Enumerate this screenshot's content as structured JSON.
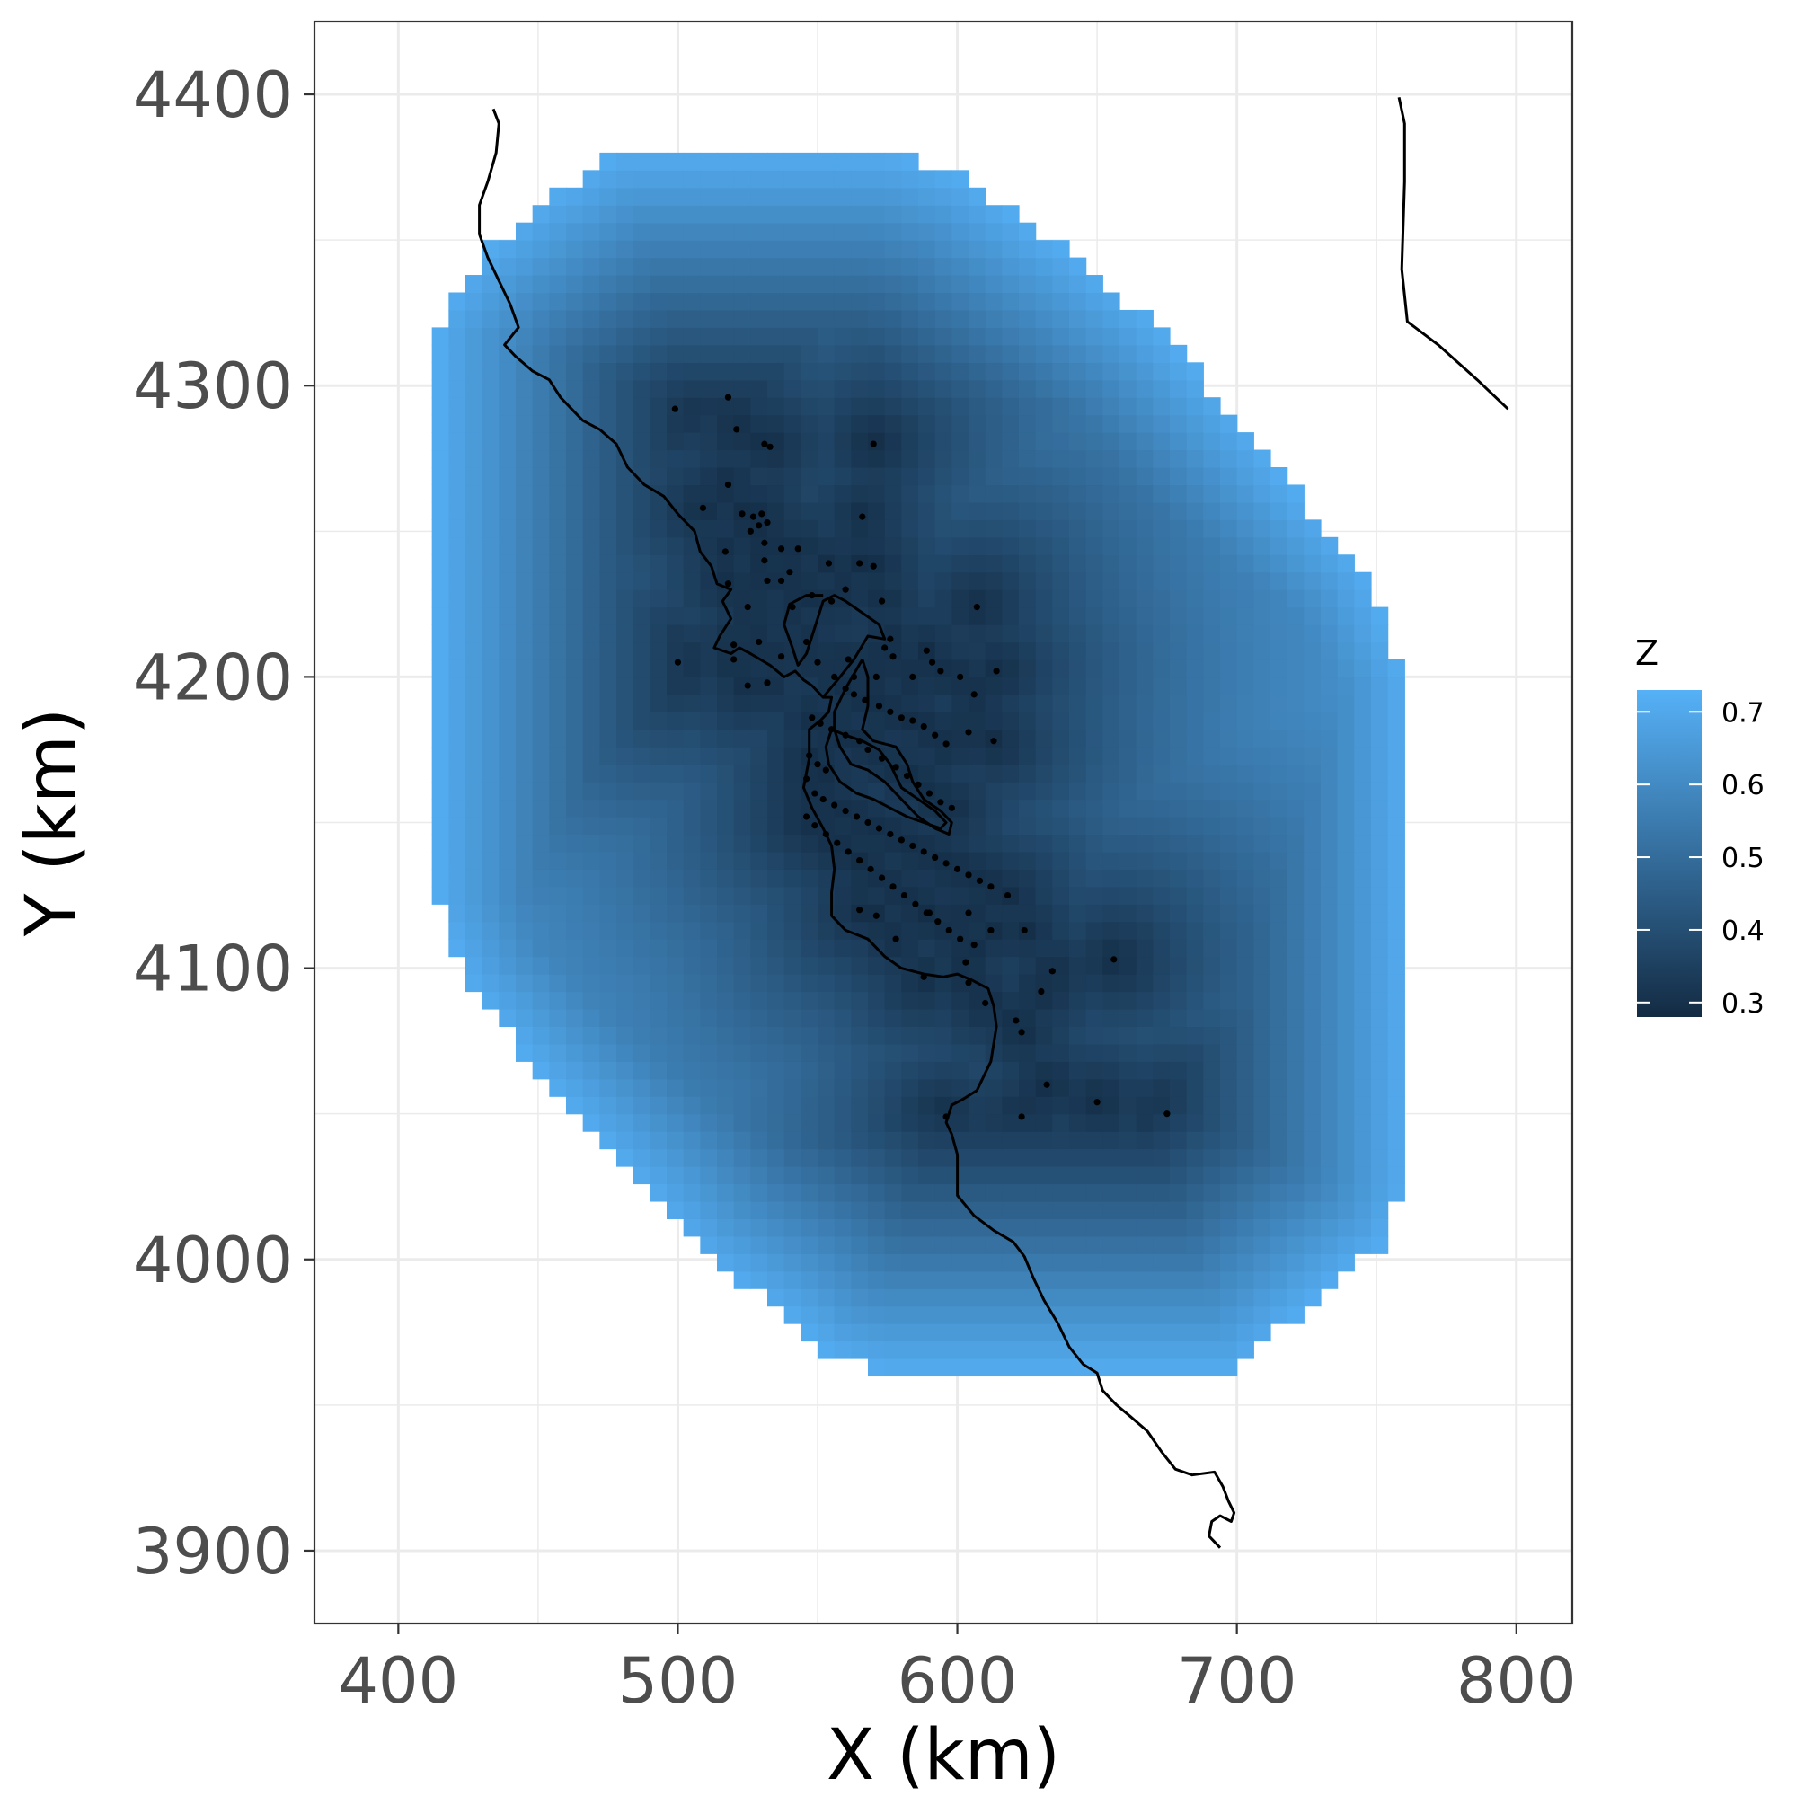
{
  "chart_data": {
    "type": "heatmap",
    "title": "",
    "xlabel": "X (km)",
    "ylabel": "Y (km)",
    "xlim": [
      370,
      820
    ],
    "ylim": [
      3875,
      4425
    ],
    "x_ticks": [
      400,
      500,
      600,
      700,
      800
    ],
    "y_ticks": [
      3900,
      4000,
      4100,
      4200,
      4300,
      4400
    ],
    "grid": true,
    "legend": {
      "title": "Z",
      "position": "right",
      "range": [
        0.28,
        0.73
      ],
      "ticks": [
        0.3,
        0.4,
        0.5,
        0.6,
        0.7
      ],
      "color_low": "#132B43",
      "color_high": "#56B1F7"
    },
    "surface": {
      "description_values": "predicted Z over convex hull region",
      "hull_polygon": [
        [
          415,
          4322
        ],
        [
          430,
          4345
        ],
        [
          455,
          4365
        ],
        [
          480,
          4380
        ],
        [
          575,
          4380
        ],
        [
          600,
          4372
        ],
        [
          640,
          4345
        ],
        [
          670,
          4322
        ],
        [
          690,
          4300
        ],
        [
          715,
          4270
        ],
        [
          745,
          4236
        ],
        [
          760,
          4200
        ],
        [
          760,
          4025
        ],
        [
          752,
          4005
        ],
        [
          735,
          3993
        ],
        [
          720,
          3980
        ],
        [
          705,
          3967
        ],
        [
          700,
          3962
        ],
        [
          572,
          3962
        ],
        [
          555,
          3967
        ],
        [
          540,
          3980
        ],
        [
          510,
          4000
        ],
        [
          490,
          4023
        ],
        [
          450,
          4065
        ],
        [
          425,
          4095
        ],
        [
          415,
          4120
        ]
      ],
      "min_center": [
        585,
        4180
      ],
      "min_value": 0.29,
      "max_value": 0.73
    },
    "points": [
      [
        499,
        4292
      ],
      [
        518,
        4296
      ],
      [
        521,
        4285
      ],
      [
        531,
        4280
      ],
      [
        533,
        4279
      ],
      [
        570,
        4280
      ],
      [
        518,
        4266
      ],
      [
        509,
        4258
      ],
      [
        523,
        4256
      ],
      [
        527,
        4255
      ],
      [
        530,
        4256
      ],
      [
        529,
        4252
      ],
      [
        532,
        4253
      ],
      [
        526,
        4250
      ],
      [
        531,
        4246
      ],
      [
        537,
        4244
      ],
      [
        543,
        4244
      ],
      [
        517,
        4243
      ],
      [
        531,
        4240
      ],
      [
        540,
        4236
      ],
      [
        537,
        4233
      ],
      [
        532,
        4233
      ],
      [
        518,
        4232
      ],
      [
        554,
        4239
      ],
      [
        565,
        4239
      ],
      [
        570,
        4238
      ],
      [
        566,
        4255
      ],
      [
        525,
        4224
      ],
      [
        548,
        4228
      ],
      [
        555,
        4226
      ],
      [
        573,
        4226
      ],
      [
        607,
        4224
      ],
      [
        541,
        4224
      ],
      [
        560,
        4230
      ],
      [
        576,
        4213
      ],
      [
        574,
        4210
      ],
      [
        520,
        4211
      ],
      [
        529,
        4212
      ],
      [
        546,
        4212
      ],
      [
        537,
        4207
      ],
      [
        520,
        4206
      ],
      [
        500,
        4205
      ],
      [
        550,
        4205
      ],
      [
        561,
        4206
      ],
      [
        577,
        4207
      ],
      [
        589,
        4209
      ],
      [
        591,
        4205
      ],
      [
        594,
        4202
      ],
      [
        556,
        4200
      ],
      [
        563,
        4200
      ],
      [
        571,
        4200
      ],
      [
        584,
        4200
      ],
      [
        601,
        4200
      ],
      [
        614,
        4202
      ],
      [
        525,
        4197
      ],
      [
        532,
        4198
      ],
      [
        560,
        4196
      ],
      [
        563,
        4194
      ],
      [
        567,
        4192
      ],
      [
        572,
        4190
      ],
      [
        576,
        4188
      ],
      [
        580,
        4186
      ],
      [
        584,
        4185
      ],
      [
        588,
        4183
      ],
      [
        592,
        4180
      ],
      [
        596,
        4177
      ],
      [
        604,
        4181
      ],
      [
        613,
        4178
      ],
      [
        606,
        4194
      ],
      [
        548,
        4186
      ],
      [
        551,
        4184
      ],
      [
        555,
        4182
      ],
      [
        560,
        4180
      ],
      [
        565,
        4178
      ],
      [
        568,
        4175
      ],
      [
        573,
        4172
      ],
      [
        578,
        4169
      ],
      [
        582,
        4166
      ],
      [
        586,
        4163
      ],
      [
        590,
        4160
      ],
      [
        594,
        4157
      ],
      [
        598,
        4155
      ],
      [
        547,
        4173
      ],
      [
        550,
        4170
      ],
      [
        553,
        4168
      ],
      [
        546,
        4165
      ],
      [
        549,
        4160
      ],
      [
        552,
        4158
      ],
      [
        556,
        4156
      ],
      [
        560,
        4154
      ],
      [
        564,
        4152
      ],
      [
        568,
        4150
      ],
      [
        572,
        4148
      ],
      [
        576,
        4146
      ],
      [
        580,
        4144
      ],
      [
        584,
        4142
      ],
      [
        588,
        4140
      ],
      [
        592,
        4138
      ],
      [
        596,
        4136
      ],
      [
        600,
        4134
      ],
      [
        604,
        4132
      ],
      [
        608,
        4130
      ],
      [
        612,
        4128
      ],
      [
        546,
        4152
      ],
      [
        549,
        4149
      ],
      [
        553,
        4146
      ],
      [
        557,
        4143
      ],
      [
        561,
        4140
      ],
      [
        565,
        4137
      ],
      [
        569,
        4134
      ],
      [
        573,
        4131
      ],
      [
        577,
        4128
      ],
      [
        581,
        4125
      ],
      [
        585,
        4122
      ],
      [
        589,
        4119
      ],
      [
        593,
        4116
      ],
      [
        597,
        4113
      ],
      [
        601,
        4110
      ],
      [
        565,
        4120
      ],
      [
        571,
        4118
      ],
      [
        578,
        4110
      ],
      [
        590,
        4119
      ],
      [
        604,
        4119
      ],
      [
        606,
        4108
      ],
      [
        612,
        4113
      ],
      [
        618,
        4125
      ],
      [
        624,
        4113
      ],
      [
        604,
        4095
      ],
      [
        610,
        4088
      ],
      [
        621,
        4082
      ],
      [
        623,
        4078
      ],
      [
        630,
        4092
      ],
      [
        634,
        4099
      ],
      [
        656,
        4103
      ],
      [
        603,
        4102
      ],
      [
        588,
        4097
      ],
      [
        632,
        4060
      ],
      [
        650,
        4054
      ],
      [
        675,
        4050
      ],
      [
        623,
        4049
      ],
      [
        596,
        4049
      ]
    ],
    "coastline": [
      [
        434,
        4395
      ],
      [
        436,
        4390
      ],
      [
        435,
        4380
      ],
      [
        432,
        4370
      ],
      [
        429,
        4362
      ],
      [
        429,
        4352
      ],
      [
        432,
        4344
      ],
      [
        436,
        4336
      ],
      [
        440,
        4328
      ],
      [
        443,
        4320
      ],
      [
        438,
        4314
      ],
      [
        442,
        4310
      ],
      [
        448,
        4305
      ],
      [
        454,
        4302
      ],
      [
        458,
        4296
      ],
      [
        462,
        4292
      ],
      [
        466,
        4288
      ],
      [
        472,
        4285
      ],
      [
        478,
        4280
      ],
      [
        482,
        4272
      ],
      [
        488,
        4266
      ],
      [
        495,
        4262
      ],
      [
        500,
        4256
      ],
      [
        506,
        4250
      ],
      [
        508,
        4243
      ],
      [
        512,
        4238
      ],
      [
        514,
        4232
      ],
      [
        519,
        4230
      ],
      [
        516,
        4226
      ],
      [
        519,
        4220
      ],
      [
        515,
        4214
      ],
      [
        513,
        4210
      ],
      [
        519,
        4208
      ],
      [
        522,
        4210
      ],
      [
        526,
        4208
      ],
      [
        533,
        4204
      ],
      [
        538,
        4200
      ],
      [
        542,
        4202
      ],
      [
        545,
        4199
      ],
      [
        548,
        4197
      ],
      [
        552,
        4193
      ],
      [
        555,
        4193
      ],
      [
        554,
        4188
      ],
      [
        551,
        4185
      ],
      [
        547,
        4182
      ],
      [
        547,
        4172
      ],
      [
        545,
        4162
      ],
      [
        548,
        4155
      ],
      [
        552,
        4148
      ],
      [
        555,
        4142
      ],
      [
        556,
        4134
      ],
      [
        555,
        4126
      ],
      [
        555,
        4118
      ],
      [
        560,
        4113
      ],
      [
        568,
        4110
      ],
      [
        574,
        4104
      ],
      [
        580,
        4100
      ],
      [
        588,
        4098
      ],
      [
        595,
        4097
      ],
      [
        600,
        4098
      ],
      [
        605,
        4096
      ],
      [
        611,
        4093
      ],
      [
        613,
        4087
      ],
      [
        614,
        4080
      ],
      [
        612,
        4068
      ],
      [
        607,
        4058
      ],
      [
        602,
        4055
      ],
      [
        598,
        4053
      ],
      [
        596,
        4047
      ],
      [
        598,
        4043
      ],
      [
        600,
        4036
      ],
      [
        600,
        4022
      ],
      [
        606,
        4015
      ],
      [
        613,
        4010
      ],
      [
        620,
        4006
      ],
      [
        624,
        4001
      ],
      [
        627,
        3994
      ],
      [
        631,
        3986
      ],
      [
        636,
        3978
      ],
      [
        640,
        3970
      ],
      [
        645,
        3964
      ],
      [
        650,
        3961
      ],
      [
        652,
        3955
      ],
      [
        657,
        3950
      ],
      [
        662,
        3946
      ],
      [
        668,
        3941
      ],
      [
        673,
        3934
      ],
      [
        678,
        3928
      ],
      [
        684,
        3926
      ],
      [
        692,
        3927
      ],
      [
        695,
        3922
      ],
      [
        697,
        3917
      ],
      [
        699,
        3913
      ],
      [
        698,
        3910
      ],
      [
        694,
        3912
      ],
      [
        691,
        3910
      ],
      [
        690,
        3905
      ],
      [
        694,
        3901
      ]
    ],
    "bay_inner": [
      [
        552,
        4193
      ],
      [
        558,
        4200
      ],
      [
        563,
        4206
      ],
      [
        568,
        4214
      ],
      [
        574,
        4213
      ],
      [
        572,
        4218
      ],
      [
        566,
        4222
      ],
      [
        560,
        4226
      ],
      [
        556,
        4228
      ],
      [
        552,
        4226
      ],
      [
        550,
        4220
      ],
      [
        548,
        4214
      ],
      [
        546,
        4208
      ],
      [
        543,
        4204
      ],
      [
        541,
        4210
      ],
      [
        538,
        4218
      ],
      [
        540,
        4225
      ],
      [
        546,
        4228
      ],
      [
        552,
        4228
      ]
    ],
    "bay_east": [
      [
        566,
        4206
      ],
      [
        568,
        4200
      ],
      [
        568,
        4190
      ],
      [
        566,
        4182
      ],
      [
        570,
        4178
      ],
      [
        578,
        4176
      ],
      [
        582,
        4170
      ],
      [
        584,
        4164
      ],
      [
        588,
        4158
      ],
      [
        594,
        4154
      ],
      [
        598,
        4150
      ],
      [
        597,
        4146
      ],
      [
        592,
        4148
      ],
      [
        586,
        4152
      ],
      [
        580,
        4158
      ],
      [
        574,
        4164
      ],
      [
        568,
        4168
      ],
      [
        562,
        4170
      ],
      [
        558,
        4176
      ],
      [
        556,
        4182
      ],
      [
        556,
        4188
      ],
      [
        560,
        4196
      ],
      [
        566,
        4206
      ]
    ],
    "bay_south": [
      [
        555,
        4182
      ],
      [
        560,
        4180
      ],
      [
        566,
        4178
      ],
      [
        572,
        4175
      ],
      [
        576,
        4170
      ],
      [
        580,
        4162
      ],
      [
        586,
        4158
      ],
      [
        592,
        4154
      ],
      [
        596,
        4150
      ],
      [
        594,
        4148
      ],
      [
        588,
        4150
      ],
      [
        582,
        4152
      ],
      [
        576,
        4155
      ],
      [
        570,
        4158
      ],
      [
        564,
        4160
      ],
      [
        558,
        4164
      ],
      [
        554,
        4170
      ],
      [
        553,
        4176
      ],
      [
        555,
        4182
      ]
    ],
    "nevada_line": [
      [
        758,
        4399
      ],
      [
        760,
        4390
      ],
      [
        760,
        4370
      ],
      [
        759,
        4340
      ],
      [
        761,
        4322
      ],
      [
        772,
        4314
      ],
      [
        786,
        4302
      ],
      [
        797,
        4292
      ]
    ]
  }
}
